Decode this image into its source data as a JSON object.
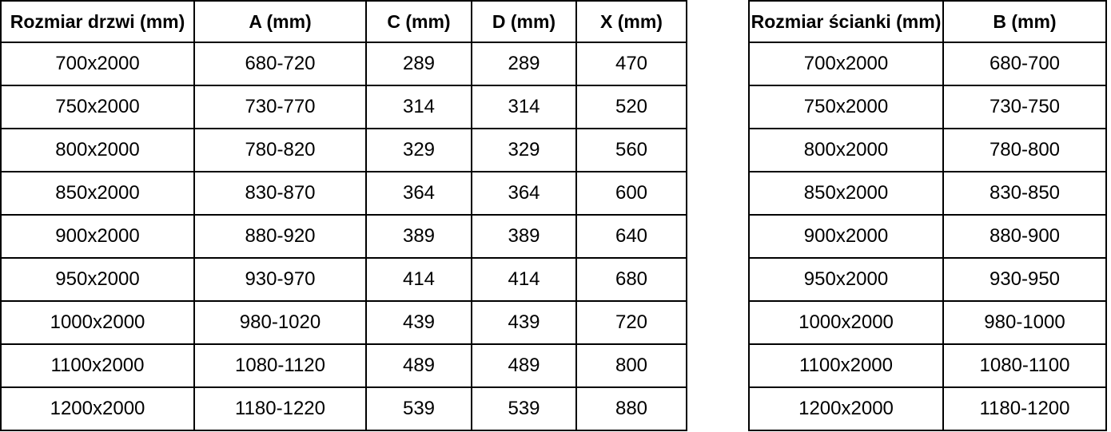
{
  "colors": {
    "border": "#000000",
    "text": "#000000",
    "background": "#ffffff"
  },
  "tables": [
    {
      "name": "door-size-table",
      "headers": [
        "Rozmiar drzwi (mm)",
        "A (mm)",
        "C (mm)",
        "D (mm)",
        "X (mm)"
      ],
      "rows": [
        [
          "700x2000",
          "680-720",
          "289",
          "289",
          "470"
        ],
        [
          "750x2000",
          "730-770",
          "314",
          "314",
          "520"
        ],
        [
          "800x2000",
          "780-820",
          "329",
          "329",
          "560"
        ],
        [
          "850x2000",
          "830-870",
          "364",
          "364",
          "600"
        ],
        [
          "900x2000",
          "880-920",
          "389",
          "389",
          "640"
        ],
        [
          "950x2000",
          "930-970",
          "414",
          "414",
          "680"
        ],
        [
          "1000x2000",
          "980-1020",
          "439",
          "439",
          "720"
        ],
        [
          "1100x2000",
          "1080-1120",
          "489",
          "489",
          "800"
        ],
        [
          "1200x2000",
          "1180-1220",
          "539",
          "539",
          "880"
        ]
      ]
    },
    {
      "name": "wall-size-table",
      "headers": [
        "Rozmiar ścianki (mm)",
        "B (mm)"
      ],
      "rows": [
        [
          "700x2000",
          "680-700"
        ],
        [
          "750x2000",
          "730-750"
        ],
        [
          "800x2000",
          "780-800"
        ],
        [
          "850x2000",
          "830-850"
        ],
        [
          "900x2000",
          "880-900"
        ],
        [
          "950x2000",
          "930-950"
        ],
        [
          "1000x2000",
          "980-1000"
        ],
        [
          "1100x2000",
          "1080-1100"
        ],
        [
          "1200x2000",
          "1180-1200"
        ]
      ]
    }
  ]
}
